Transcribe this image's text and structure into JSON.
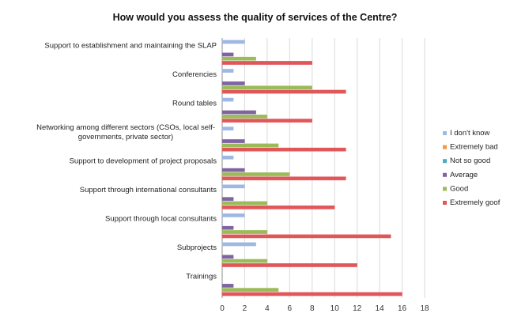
{
  "chart_data": {
    "type": "bar",
    "orientation": "horizontal",
    "title": "How would you assess the quality of services of the Centre?",
    "xlabel": "",
    "ylabel": "",
    "xlim": [
      0,
      18
    ],
    "x_ticks": [
      0,
      2,
      4,
      6,
      8,
      10,
      12,
      14,
      16,
      18
    ],
    "grid": "vertical",
    "legend_position": "right",
    "categories": [
      "Support to establishment and maintaining the SLAP",
      "Conferencies",
      "Round tables",
      "Networking among different sectors (CSOs, local self-governments, private sector)",
      "Support to development of project proposals",
      "Support through international consultants",
      "Support through local consultants",
      "Subprojects",
      "Trainings"
    ],
    "series": [
      {
        "name": "I don't know",
        "color": "#9fb8e2",
        "values": [
          2,
          1,
          1,
          1,
          1,
          2,
          2,
          3,
          0
        ]
      },
      {
        "name": "Extremely bad",
        "color": "#f79646",
        "values": [
          0,
          0,
          0,
          0,
          0,
          0,
          0,
          0,
          0
        ]
      },
      {
        "name": "Not so good",
        "color": "#4bacc6",
        "values": [
          0,
          0,
          0,
          0,
          0,
          0,
          0,
          0,
          0
        ]
      },
      {
        "name": "Average",
        "color": "#8064a2",
        "values": [
          1,
          2,
          3,
          2,
          2,
          1,
          1,
          1,
          1
        ]
      },
      {
        "name": "Good",
        "color": "#9bbb59",
        "values": [
          3,
          8,
          4,
          5,
          6,
          4,
          4,
          4,
          5
        ]
      },
      {
        "name": "Extremely goof",
        "color": "#e0575a",
        "values": [
          8,
          11,
          8,
          11,
          11,
          10,
          15,
          12,
          16
        ]
      }
    ]
  }
}
